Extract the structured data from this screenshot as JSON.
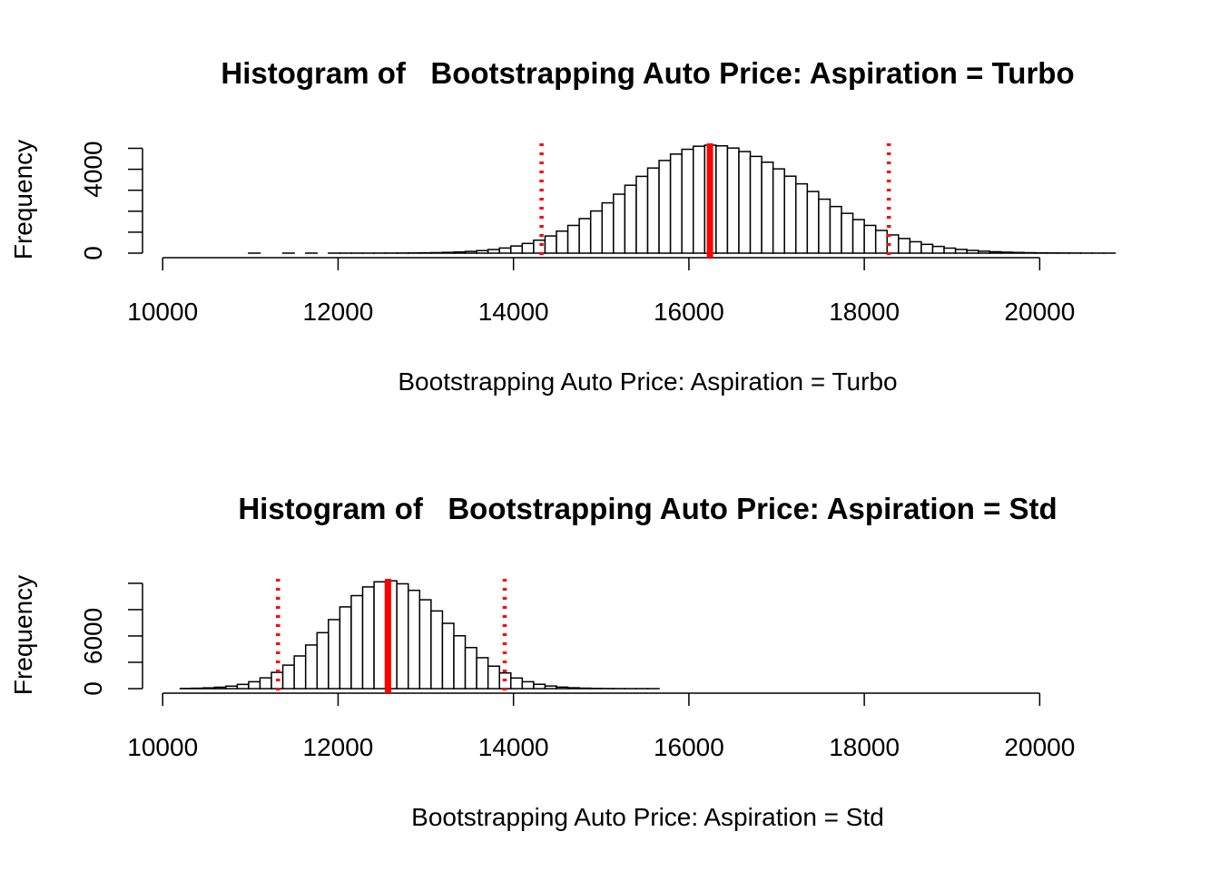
{
  "chart_data": [
    {
      "type": "histogram",
      "title": "Histogram of   Bootstrapping Auto Price: Aspiration = Turbo",
      "xlabel": "Bootstrapping Auto Price: Aspiration = Turbo",
      "ylabel": "Frequency",
      "bins": [
        10200,
        10330,
        10460,
        10590,
        10720,
        10850,
        10980,
        11110,
        11240,
        11370,
        11500,
        11630,
        11760,
        11890,
        12020,
        12150,
        12280,
        12410,
        12540,
        12670,
        12800,
        12930,
        13060,
        13190,
        13320,
        13450,
        13580,
        13710,
        13840,
        13970,
        14100,
        14230,
        14360,
        14490,
        14620,
        14750,
        14880,
        15010,
        15140,
        15270,
        15400,
        15530,
        15660,
        15790,
        15920,
        16050,
        16180,
        16310,
        16440,
        16570,
        16700,
        16830,
        16960,
        17090,
        17220,
        17350,
        17480,
        17610,
        17740,
        17870,
        18000,
        18130,
        18260,
        18390,
        18520,
        18650,
        18780,
        18910,
        19040,
        19170,
        19300,
        19430,
        19560,
        19690,
        19820,
        19950,
        20080,
        20210,
        20340,
        20470,
        20600,
        20730,
        20860
      ],
      "counts": [
        0,
        0,
        0,
        0,
        0,
        0,
        1,
        0,
        0,
        1,
        0,
        1,
        0,
        1,
        1,
        1,
        1,
        2,
        3,
        5,
        9,
        15,
        23,
        36,
        55,
        82,
        120,
        172,
        244,
        340,
        462,
        618,
        818,
        1050,
        1322,
        1647,
        2010,
        2397,
        2812,
        3238,
        3662,
        4060,
        4420,
        4724,
        4953,
        5099,
        5150,
        5117,
        5013,
        4845,
        4614,
        4338,
        4019,
        3670,
        3305,
        2940,
        2573,
        2223,
        1898,
        1600,
        1322,
        1082,
        869,
        697,
        543,
        419,
        320,
        239,
        177,
        130,
        93,
        66,
        46,
        32,
        21,
        14,
        9,
        6,
        4,
        2,
        1,
        1
      ],
      "color": "white",
      "edgecolor": "black",
      "xlim": [
        9770,
        21290
      ],
      "ylim": [
        0,
        5150
      ],
      "xticks": [
        10000,
        12000,
        14000,
        16000,
        18000,
        20000
      ],
      "yticks": [
        0,
        {
          "value": 1000,
          "label": null
        },
        {
          "value": 2000,
          "label": null
        },
        {
          "value": 3000,
          "label": null
        },
        4000,
        {
          "value": 5000,
          "label": null
        }
      ],
      "mean_line": 16240,
      "ci_lines": [
        14320,
        18280
      ],
      "line_color": "red"
    },
    {
      "type": "histogram",
      "title": "Histogram of   Bootstrapping Auto Price: Aspiration = Std",
      "xlabel": "Bootstrapping Auto Price: Aspiration = Std",
      "ylabel": "Frequency",
      "bins": [
        10200,
        10330,
        10460,
        10590,
        10720,
        10850,
        10980,
        11110,
        11240,
        11370,
        11500,
        11630,
        11760,
        11890,
        12020,
        12150,
        12280,
        12410,
        12540,
        12670,
        12800,
        12930,
        13060,
        13190,
        13320,
        13450,
        13580,
        13710,
        13840,
        13970,
        14100,
        14230,
        14360,
        14490,
        14620,
        14750,
        14880,
        15010,
        15140,
        15270,
        15400,
        15530,
        15660,
        15790,
        15920,
        16050,
        16180,
        16310,
        16440,
        16570,
        16700,
        16830,
        16960,
        17090,
        17220,
        17350,
        17480,
        17610,
        17740,
        17870,
        18000,
        18130,
        18260,
        18390,
        18520,
        18650,
        18780,
        18910,
        19040,
        19170,
        19300,
        19430,
        19560,
        19690,
        19820,
        19950,
        20080,
        20210,
        20340,
        20470,
        20600,
        20730,
        20860
      ],
      "counts": [
        23,
        46,
        87,
        160,
        283,
        481,
        786,
        1229,
        1852,
        2677,
        3722,
        4970,
        6375,
        7863,
        9311,
        10594,
        11586,
        12169,
        12284,
        11943,
        11197,
        10123,
        8849,
        7438,
        6021,
        4678,
        3524,
        2562,
        1788,
        1208,
        786,
        493,
        298,
        173,
        97,
        53,
        28,
        14,
        7,
        3,
        2,
        1,
        0,
        0,
        0,
        0,
        0,
        0,
        0,
        0,
        0,
        0,
        0,
        0,
        0,
        0,
        0,
        0,
        0,
        0,
        0,
        0,
        0,
        0,
        0,
        0,
        0,
        0,
        0,
        0,
        0,
        0,
        0,
        0,
        0,
        0,
        0,
        0,
        0,
        0,
        0,
        0
      ],
      "color": "white",
      "edgecolor": "black",
      "xlim": [
        9770,
        21290
      ],
      "ylim": [
        0,
        12300
      ],
      "xticks": [
        10000,
        12000,
        14000,
        16000,
        18000,
        20000
      ],
      "yticks": [
        0,
        {
          "value": 3000,
          "label": null
        },
        6000,
        {
          "value": 9000,
          "label": null
        },
        {
          "value": 12000,
          "label": null
        }
      ],
      "mean_line": 12570,
      "ci_lines": [
        11315,
        13900
      ],
      "line_color": "red"
    }
  ]
}
